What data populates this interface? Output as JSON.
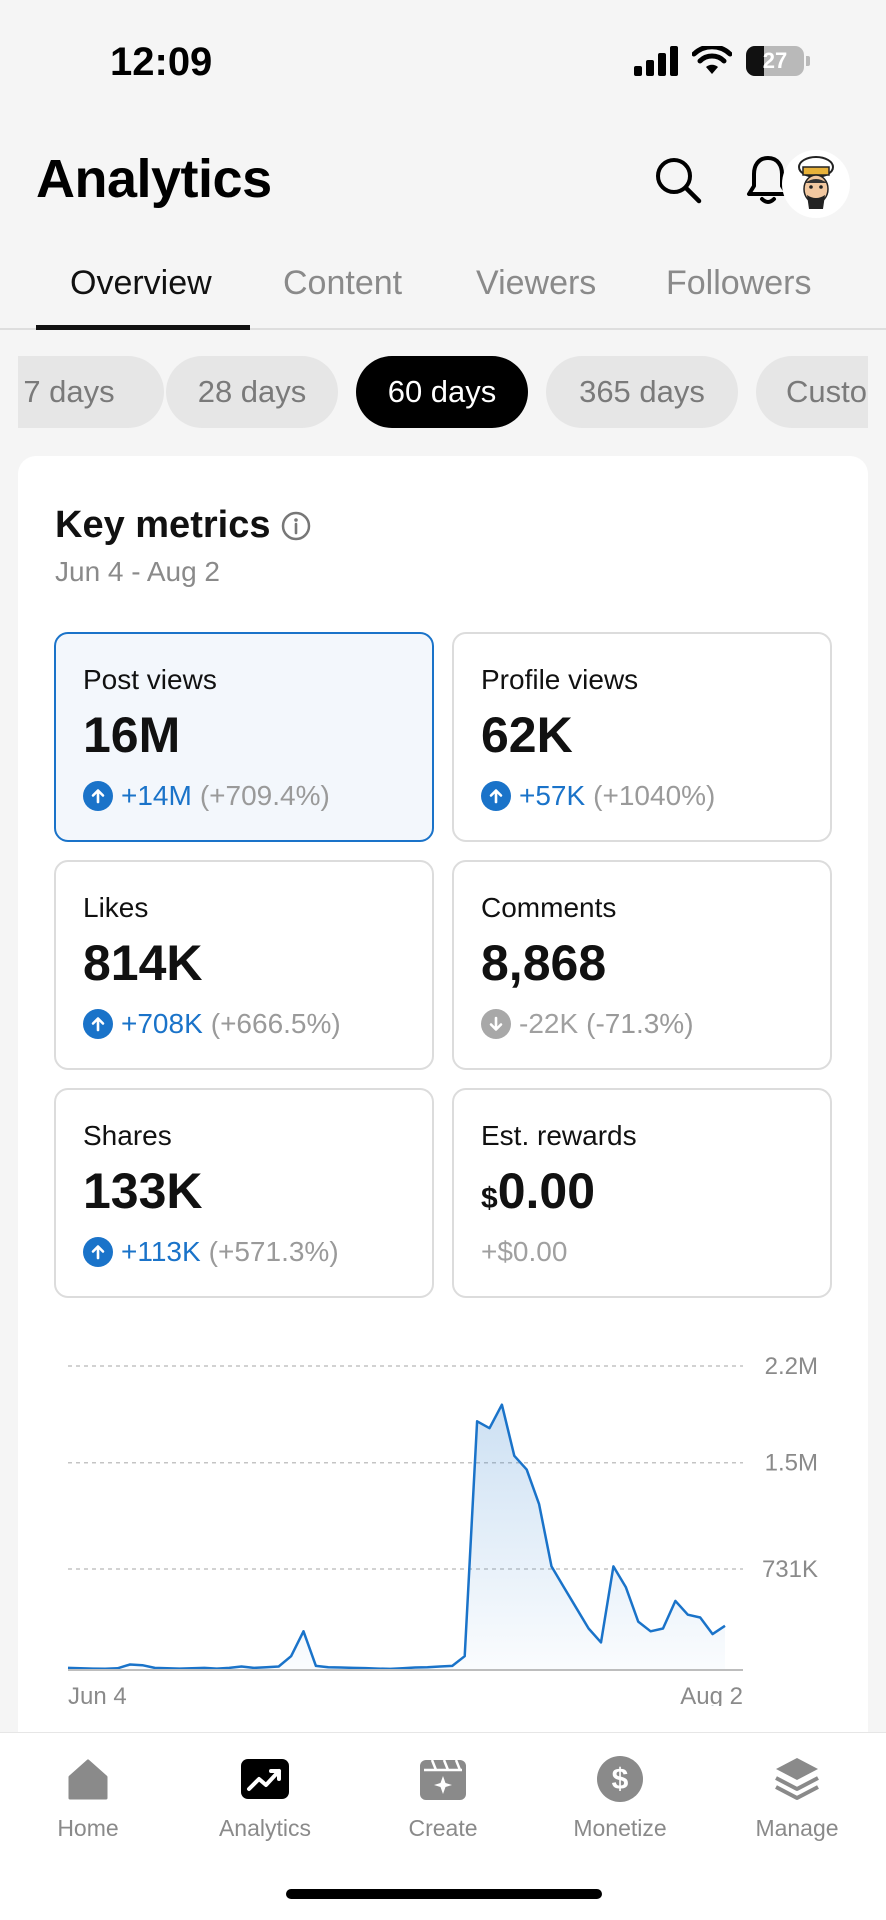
{
  "status_bar": {
    "time": "12:09",
    "battery": "27"
  },
  "header": {
    "title": "Analytics"
  },
  "tabs": [
    {
      "label": "Overview",
      "active": true
    },
    {
      "label": "Content",
      "active": false
    },
    {
      "label": "Viewers",
      "active": false
    },
    {
      "label": "Followers",
      "active": false
    }
  ],
  "ranges": [
    {
      "label": "7 days",
      "active": false
    },
    {
      "label": "28 days",
      "active": false
    },
    {
      "label": "60 days",
      "active": true
    },
    {
      "label": "365 days",
      "active": false
    },
    {
      "label": "Custo",
      "active": false
    }
  ],
  "key_metrics": {
    "title": "Key metrics",
    "date_range": "Jun 4 - Aug 2",
    "items": [
      {
        "label": "Post views",
        "value": "16M",
        "delta": "+14M",
        "pct": "(+709.4%)",
        "trend": "up"
      },
      {
        "label": "Profile views",
        "value": "62K",
        "delta": "+57K",
        "pct": "(+1040%)",
        "trend": "up"
      },
      {
        "label": "Likes",
        "value": "814K",
        "delta": "+708K",
        "pct": "(+666.5%)",
        "trend": "up"
      },
      {
        "label": "Comments",
        "value": "8,868",
        "delta": "-22K",
        "pct": "(-71.3%)",
        "trend": "down"
      },
      {
        "label": "Shares",
        "value": "133K",
        "delta": "+113K",
        "pct": "(+571.3%)",
        "trend": "up"
      },
      {
        "label": "Est. rewards",
        "currency": "$",
        "value": "0.00",
        "delta": "+$0.00",
        "pct": "",
        "trend": "none"
      }
    ]
  },
  "chart_data": {
    "type": "area",
    "x_labels": [
      "Jun 4",
      "Aug 2"
    ],
    "y_ticks": [
      "731K",
      "1.5M",
      "2.2M"
    ],
    "y_tick_values": [
      731000,
      1500000,
      2200000
    ],
    "ylim": [
      0,
      2200000
    ],
    "grid": true,
    "series": [
      {
        "color": "#1a73c9",
        "values": [
          15000,
          12000,
          10000,
          9000,
          12000,
          40000,
          35000,
          15000,
          12000,
          10000,
          12000,
          15000,
          10000,
          15000,
          25000,
          15000,
          20000,
          25000,
          100000,
          280000,
          30000,
          20000,
          18000,
          15000,
          14000,
          10000,
          8000,
          12000,
          18000,
          20000,
          25000,
          30000,
          100000,
          1800000,
          1750000,
          1920000,
          1550000,
          1450000,
          1200000,
          750000,
          600000,
          450000,
          300000,
          200000,
          750000,
          600000,
          350000,
          280000,
          300000,
          500000,
          400000,
          380000,
          260000,
          320000
        ]
      }
    ]
  },
  "nav": [
    {
      "label": "Home",
      "icon": "home-icon",
      "active": false
    },
    {
      "label": "Analytics",
      "icon": "analytics-icon",
      "active": true
    },
    {
      "label": "Create",
      "icon": "create-icon",
      "active": false
    },
    {
      "label": "Monetize",
      "icon": "monetize-icon",
      "active": false
    },
    {
      "label": "Manage",
      "icon": "manage-icon",
      "active": false
    }
  ]
}
